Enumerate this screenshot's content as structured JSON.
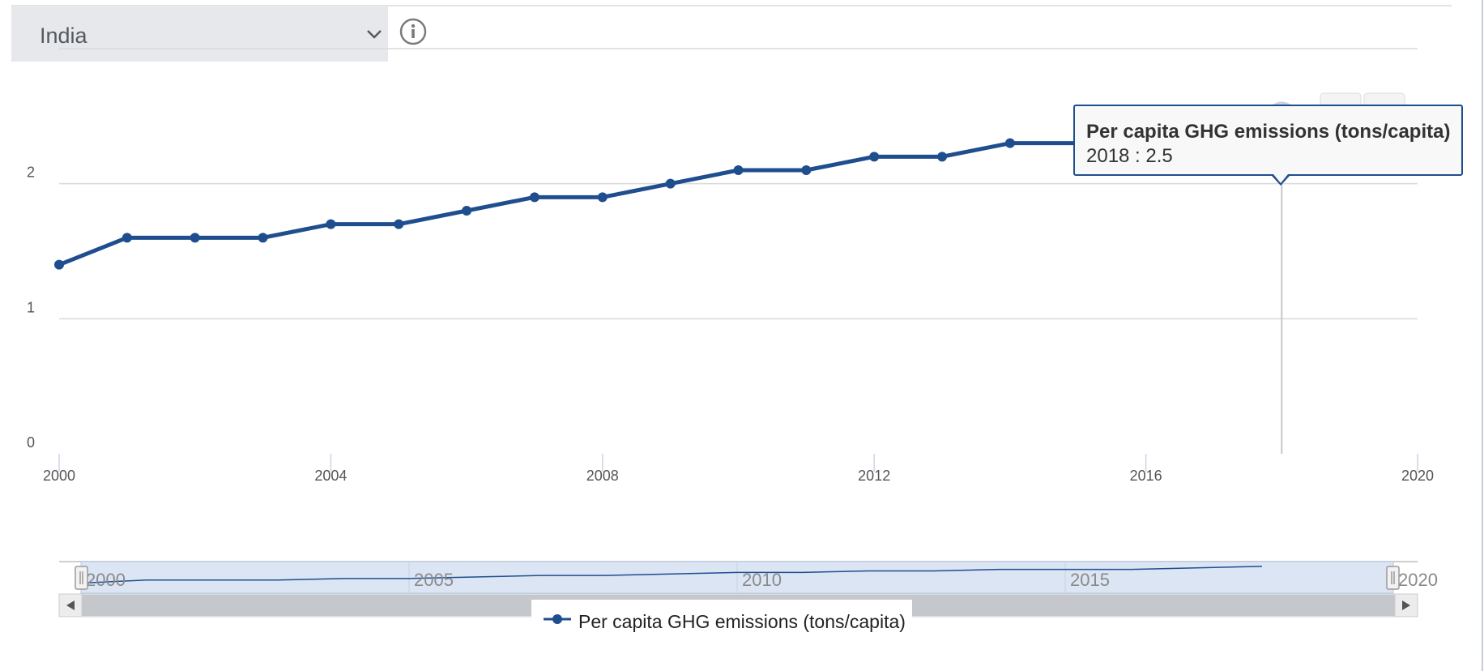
{
  "selector": {
    "country": "India"
  },
  "icons": {
    "info": "info-circle-icon",
    "chevron": "chevron-down-icon",
    "print": "print-icon",
    "download": "download-icon"
  },
  "colors": {
    "series": "#1f4e8f",
    "grid": "#d9d9d9",
    "navigator_fill": "#dbe5f4",
    "scrollbar": "#c4c7cc",
    "select_bg": "#e6e8eb"
  },
  "tooltip": {
    "title": "Per capita GHG emissions (tons/capita)",
    "value": "2018 : 2.5"
  },
  "chart_data": {
    "type": "line",
    "series": [
      {
        "name": "Per capita GHG emissions (tons/capita)",
        "x": [
          2000,
          2001,
          2002,
          2003,
          2004,
          2005,
          2006,
          2007,
          2008,
          2009,
          2010,
          2011,
          2012,
          2013,
          2014,
          2015,
          2016,
          2017,
          2018
        ],
        "values": [
          1.4,
          1.6,
          1.6,
          1.6,
          1.7,
          1.7,
          1.8,
          1.9,
          1.9,
          2.0,
          2.1,
          2.1,
          2.2,
          2.2,
          2.3,
          2.3,
          2.3,
          2.4,
          2.5
        ]
      }
    ],
    "xlim": [
      2000,
      2020
    ],
    "ylim": [
      0,
      3
    ],
    "x_ticks": [
      "2000",
      "2004",
      "2008",
      "2012",
      "2016",
      "2020"
    ],
    "y_ticks": [
      "0",
      "1",
      "2"
    ],
    "grid": true,
    "highlighted": {
      "x": 2018,
      "y": 2.5
    },
    "navigator": {
      "x_ticks": [
        "2000",
        "2005",
        "2010",
        "2015",
        "2020"
      ]
    },
    "legend": {
      "position": "bottom-center",
      "label": "Per capita GHG emissions (tons/capita)"
    }
  }
}
